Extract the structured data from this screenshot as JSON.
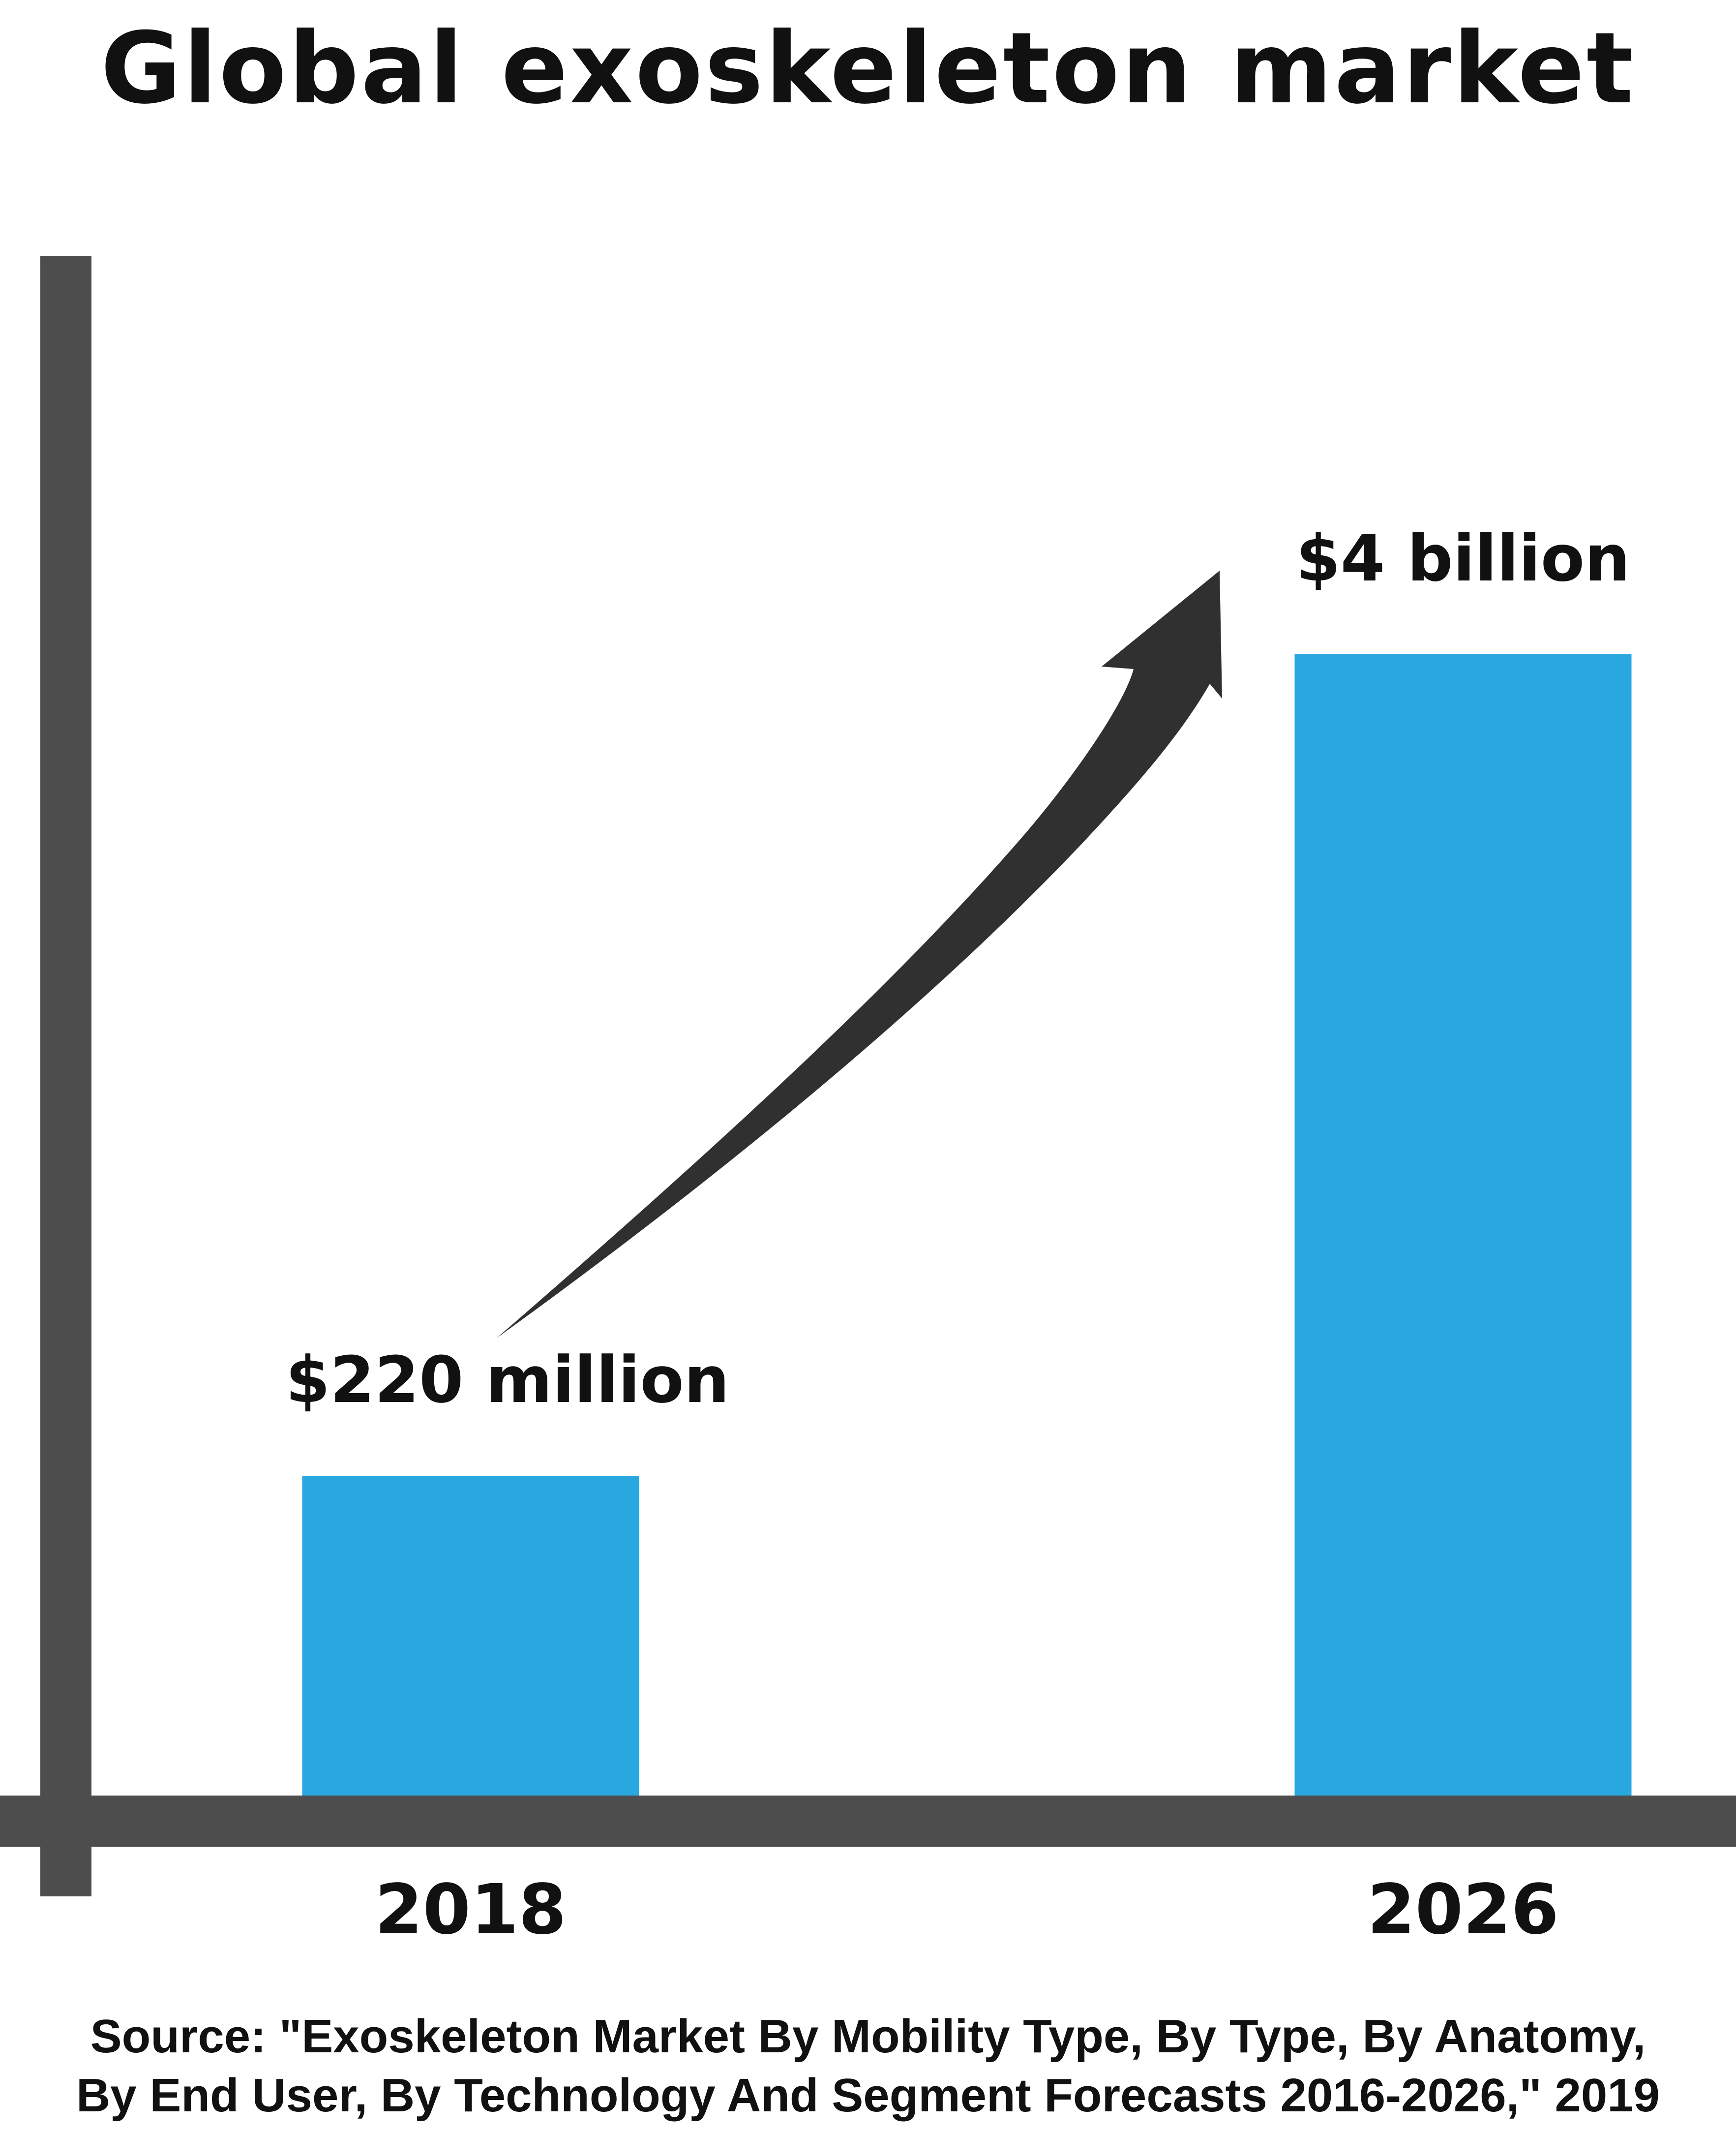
{
  "title": "Global exoskeleton market",
  "source": {
    "line1": "Source: \"Exoskeleton Market By Mobility Type, By Type, By Anatomy,",
    "line2": "By End User, By Technology And Segment Forecasts 2016-2026,\" 2019"
  },
  "colors": {
    "bar": "#29a8e0",
    "axis": "#4d4d4d",
    "arrow": "#303030",
    "text": "#111111"
  },
  "chart_data": {
    "type": "bar",
    "title": "Global exoskeleton market",
    "categories": [
      "2018",
      "2026"
    ],
    "values": [
      220,
      4000
    ],
    "value_unit": "million USD",
    "data_labels": [
      "$220 million",
      "$4 billion"
    ],
    "xlabel": "",
    "ylabel": "",
    "grid": false,
    "legend": "none",
    "annotations": [
      "upward-trend-arrow"
    ]
  }
}
